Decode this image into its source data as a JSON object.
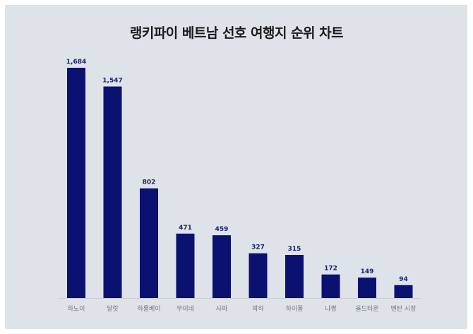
{
  "chart_data": {
    "type": "bar",
    "title": "랭키파이 베트남 선호 여행지 순위 차트",
    "categories": [
      "하노이",
      "달랏",
      "하롱베이",
      "무이네",
      "사파",
      "박하",
      "하이퐁",
      "냐짱",
      "올드타운",
      "벤탄 시장"
    ],
    "values": [
      1684,
      1547,
      802,
      471,
      459,
      327,
      315,
      172,
      149,
      94
    ],
    "value_labels": [
      "1,684",
      "1,547",
      "802",
      "471",
      "459",
      "327",
      "315",
      "172",
      "149",
      "94"
    ],
    "ylim": [
      0,
      1684
    ],
    "grid": false,
    "legend": "none",
    "bar_color": "#0a1170",
    "background_color": "#dde3e9"
  }
}
